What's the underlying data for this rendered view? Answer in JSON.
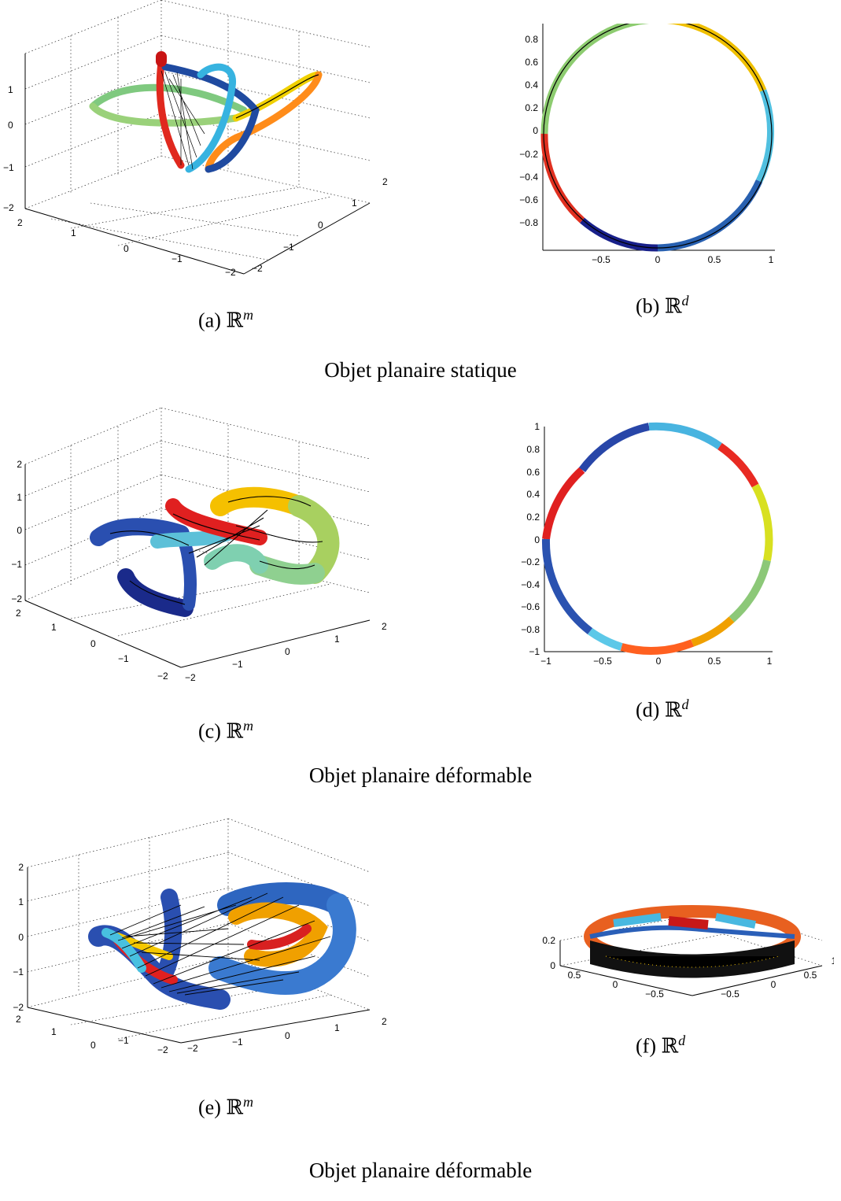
{
  "figures": [
    {
      "panel_3d": {
        "caption": {
          "label": "(a)",
          "space": "ℝ",
          "exp": "m"
        },
        "z_ticks": [
          "1",
          "0",
          "−1",
          "−2"
        ],
        "left_ticks": [
          "2",
          "1",
          "0",
          "−1",
          "−2"
        ],
        "right_ticks": [
          "2",
          "1",
          "0",
          "−1",
          "−2"
        ]
      },
      "panel_2d": {
        "caption": {
          "label": "(b)",
          "space": "ℝ",
          "exp": "d"
        },
        "y_ticks": [
          "0.8",
          "0.6",
          "0.4",
          "0.2",
          "0",
          "−0.2",
          "−0.4",
          "−0.6",
          "−0.8"
        ],
        "x_ticks": [
          "−0.5",
          "0",
          "0.5",
          "1"
        ]
      },
      "title": "Objet planaire statique"
    },
    {
      "panel_3d": {
        "caption": {
          "label": "(c)",
          "space": "ℝ",
          "exp": "m"
        },
        "z_ticks": [
          "2",
          "1",
          "0",
          "−1",
          "−2"
        ],
        "left_ticks": [
          "2",
          "1",
          "0",
          "−1",
          "−2"
        ],
        "right_ticks": [
          "2",
          "1",
          "0",
          "−1",
          "−2"
        ]
      },
      "panel_2d": {
        "caption": {
          "label": "(d)",
          "space": "ℝ",
          "exp": "d"
        },
        "y_ticks": [
          "1",
          "0.8",
          "0.6",
          "0.4",
          "0.2",
          "0",
          "−0.2",
          "−0.4",
          "−0.6",
          "−0.8",
          "−1"
        ],
        "x_ticks": [
          "−1",
          "−0.5",
          "0",
          "0.5",
          "1"
        ]
      },
      "title": "Objet planaire déformable"
    },
    {
      "panel_3d": {
        "caption": {
          "label": "(e)",
          "space": "ℝ",
          "exp": "m"
        },
        "z_ticks": [
          "2",
          "1",
          "0",
          "−1",
          "−2"
        ],
        "left_ticks": [
          "2",
          "1",
          "0",
          "−1",
          "−2"
        ],
        "right_ticks": [
          "2",
          "1",
          "0",
          "−1",
          "−2"
        ]
      },
      "panel_ring": {
        "caption": {
          "label": "(f)",
          "space": "ℝ",
          "exp": "d"
        },
        "z_ticks": [
          "0.2",
          "0"
        ],
        "left_ticks": [
          "0.5",
          "0",
          "−0.5"
        ],
        "right_ticks": [
          "1",
          "0.5",
          "0",
          "−0.5"
        ]
      },
      "title": "Objet planaire déformable"
    }
  ]
}
